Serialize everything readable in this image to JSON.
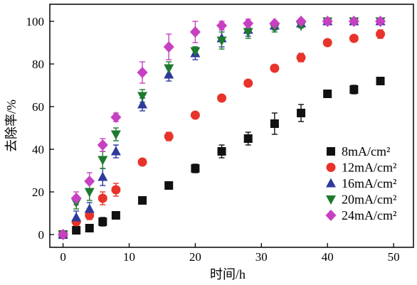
{
  "chart_data": {
    "type": "scatter",
    "xlabel": "时间/h",
    "ylabel": "去除率/%",
    "xlim": [
      -2,
      53
    ],
    "ylim": [
      -6,
      108
    ],
    "xticks": [
      0,
      10,
      20,
      30,
      40,
      50
    ],
    "yticks": [
      0,
      20,
      40,
      60,
      80,
      100
    ],
    "legend_position": "right-lower",
    "series": [
      {
        "name": "8mA/cm²",
        "marker": "square",
        "color": "#111111",
        "x": [
          0,
          2,
          4,
          6,
          8,
          12,
          16,
          20,
          24,
          28,
          32,
          36,
          40,
          44,
          48
        ],
        "y": [
          0,
          2,
          3,
          6,
          9,
          16,
          23,
          31,
          39,
          45,
          52,
          57,
          66,
          68,
          72
        ],
        "err": [
          0,
          1,
          1,
          2,
          1,
          1,
          1,
          2,
          3,
          3,
          5,
          4,
          1,
          2,
          1
        ]
      },
      {
        "name": "12mA/cm²",
        "marker": "circle",
        "color": "#e8332a",
        "x": [
          0,
          2,
          4,
          6,
          8,
          12,
          16,
          20,
          24,
          28,
          32,
          36,
          40,
          44,
          48
        ],
        "y": [
          0,
          6,
          9,
          17,
          21,
          34,
          46,
          56,
          64,
          71,
          78,
          83,
          90,
          92,
          94
        ],
        "err": [
          0,
          2,
          2,
          3,
          3,
          1,
          2,
          1,
          1,
          1,
          1,
          2,
          1,
          1,
          2
        ]
      },
      {
        "name": "16mA/cm²",
        "marker": "triangle-up",
        "color": "#2e3a9c",
        "x": [
          0,
          2,
          4,
          6,
          8,
          12,
          16,
          20,
          24,
          28,
          32,
          36,
          40,
          44,
          48
        ],
        "y": [
          0,
          8,
          12,
          27,
          39,
          61,
          75,
          85,
          92,
          96,
          98,
          99,
          100,
          100,
          100
        ],
        "err": [
          0,
          3,
          3,
          4,
          3,
          3,
          3,
          3,
          4,
          3,
          2,
          1,
          1,
          1,
          1
        ]
      },
      {
        "name": "20mA/cm²",
        "marker": "triangle-down",
        "color": "#1e7a2e",
        "x": [
          0,
          2,
          4,
          6,
          8,
          12,
          16,
          20,
          24,
          28,
          32,
          36,
          40,
          44,
          48
        ],
        "y": [
          0,
          15,
          20,
          35,
          47,
          65,
          78,
          86,
          91,
          95,
          97,
          98,
          100,
          100,
          100
        ],
        "err": [
          0,
          3,
          4,
          4,
          3,
          3,
          3,
          2,
          4,
          3,
          2,
          1,
          1,
          1,
          1
        ]
      },
      {
        "name": "24mA/cm²",
        "marker": "diamond",
        "color": "#c740c2",
        "x": [
          0,
          2,
          4,
          6,
          8,
          12,
          16,
          20,
          24,
          28,
          32,
          36,
          40,
          44,
          48
        ],
        "y": [
          0,
          17,
          25,
          42,
          55,
          76,
          88,
          95,
          98,
          99,
          99,
          100,
          100,
          100,
          100
        ],
        "err": [
          0,
          3,
          4,
          3,
          2,
          5,
          6,
          5,
          2,
          2,
          1,
          1,
          1,
          1,
          1
        ]
      }
    ]
  }
}
